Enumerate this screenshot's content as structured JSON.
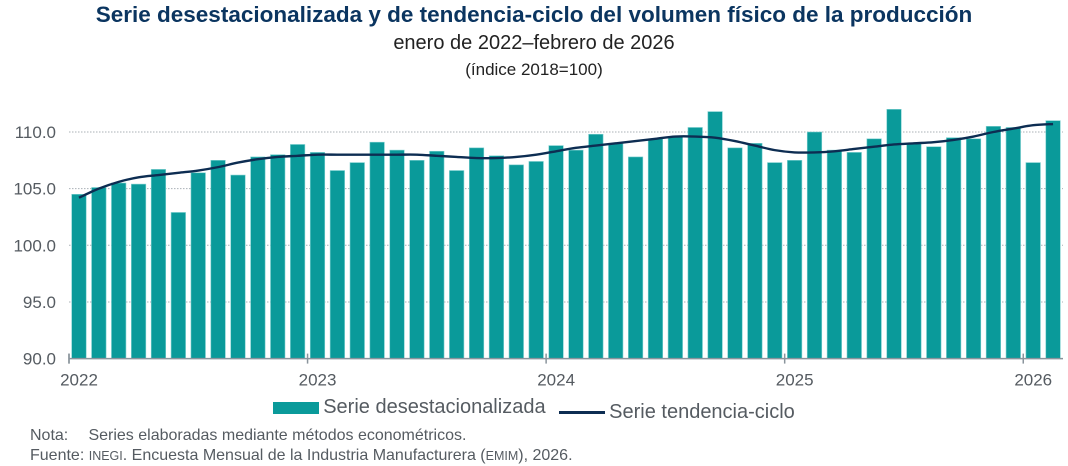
{
  "chart_data": {
    "type": "bar",
    "title": "Serie desestacionalizada y de tendencia-ciclo del volumen físico de la producción",
    "subtitle": "enero de 2022–febrero de 2026",
    "unit_label": "(índice 2018=100)",
    "xlabel": "",
    "ylabel": "",
    "ylim": [
      90,
      112.5
    ],
    "yticks": [
      90,
      95,
      100,
      105,
      110
    ],
    "ytick_labels": [
      "90.0",
      "95.0",
      "100.0",
      "105.0",
      "110.0"
    ],
    "xtick_labels": [
      "2022",
      "2023",
      "2024",
      "2025",
      "2026"
    ],
    "xtick_months_index": [
      0,
      12,
      24,
      36,
      48
    ],
    "grid": "horizontal-dotted",
    "legend_position": "bottom",
    "categories": [
      "2022-01",
      "2022-02",
      "2022-03",
      "2022-04",
      "2022-05",
      "2022-06",
      "2022-07",
      "2022-08",
      "2022-09",
      "2022-10",
      "2022-11",
      "2022-12",
      "2023-01",
      "2023-02",
      "2023-03",
      "2023-04",
      "2023-05",
      "2023-06",
      "2023-07",
      "2023-08",
      "2023-09",
      "2023-10",
      "2023-11",
      "2023-12",
      "2024-01",
      "2024-02",
      "2024-03",
      "2024-04",
      "2024-05",
      "2024-06",
      "2024-07",
      "2024-08",
      "2024-09",
      "2024-10",
      "2024-11",
      "2024-12",
      "2025-01",
      "2025-02",
      "2025-03",
      "2025-04",
      "2025-05",
      "2025-06",
      "2025-07",
      "2025-08",
      "2025-09",
      "2025-10",
      "2025-11",
      "2025-12",
      "2026-01",
      "2026-02"
    ],
    "series": [
      {
        "name": "Serie desestacionalizada",
        "type": "bar",
        "color": "#0a9a9a",
        "values": [
          104.5,
          105.1,
          105.5,
          105.4,
          106.7,
          102.9,
          106.4,
          107.5,
          106.2,
          107.8,
          108.0,
          108.9,
          108.2,
          106.6,
          107.3,
          109.1,
          108.4,
          107.5,
          108.3,
          106.6,
          108.6,
          107.9,
          107.1,
          107.4,
          108.8,
          108.4,
          109.8,
          109.0,
          107.8,
          109.4,
          109.6,
          110.4,
          111.8,
          108.6,
          109.0,
          107.3,
          107.5,
          110.0,
          108.4,
          108.2,
          109.4,
          112.0,
          109.0,
          108.7,
          109.5,
          109.4,
          110.5,
          110.4,
          107.3,
          111.0
        ]
      },
      {
        "name": "Serie tendencia-ciclo",
        "type": "line",
        "color": "#0d2d52",
        "values": [
          104.2,
          105.0,
          105.6,
          106.0,
          106.2,
          106.4,
          106.6,
          106.9,
          107.3,
          107.6,
          107.8,
          107.9,
          108.0,
          108.0,
          108.0,
          108.0,
          108.0,
          108.0,
          107.9,
          107.8,
          107.7,
          107.7,
          107.8,
          108.0,
          108.3,
          108.6,
          108.8,
          109.0,
          109.2,
          109.4,
          109.6,
          109.6,
          109.5,
          109.2,
          108.8,
          108.4,
          108.2,
          108.2,
          108.3,
          108.5,
          108.7,
          108.9,
          109.0,
          109.1,
          109.3,
          109.6,
          110.0,
          110.3,
          110.6,
          110.7
        ]
      }
    ]
  },
  "legend": {
    "bar_label": "Serie desestacionalizada",
    "line_label": "Serie tendencia-ciclo"
  },
  "notes": {
    "nota_label": "Nota:",
    "nota_text": "Series elaboradas mediante métodos econométricos.",
    "fuente_label": "Fuente:",
    "fuente_org": "INEGI",
    "fuente_text_a": ". Encuesta Mensual de la Industria Manufacturera (",
    "fuente_abbr": "EMIM",
    "fuente_text_b": "), 2026."
  }
}
